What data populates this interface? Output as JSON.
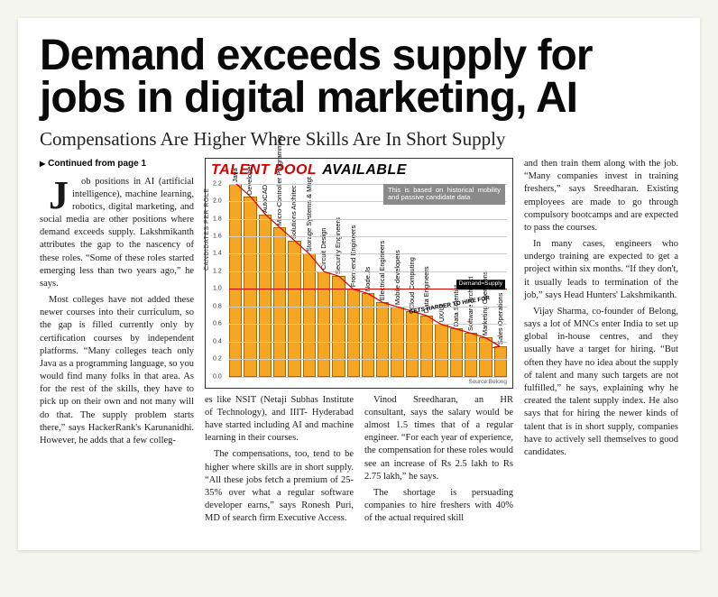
{
  "headline": "Demand exceeds supply for jobs in digital marketing, AI",
  "subhead": "Compensations Are Higher Where Skills Are In Short Supply",
  "continued": "Continued from page 1",
  "column1": {
    "dropcap": "J",
    "p1_rest": "ob positions in AI (artificial intelligence), machine learning, robotics, digital marketing, and social media are other positions where demand exceeds supply. Lakshmikanth attributes the gap to the nascency of these roles. “Some of these roles started emerging less than two years ago,” he says.",
    "p2": "Most colleges have not added these newer courses into their curriculum, so the gap is filled currently only by certification courses by independent platforms. “Many colleges teach only Java as a programming language, so you would find many folks in that area. As for the rest of the skills, they have to pick up on their own and not many will do that. The supply problem starts there,” says HackerRank's Karunanidhi. However, he adds that a few colleg-"
  },
  "mid": {
    "p1": "es like NSIT (Netaji Subhas Institute of Technology), and IIIT- Hyderabad have started including AI and machine learning in their courses.",
    "p2": "The compensations, too, tend to be higher where skills are in short supply. “All these jobs fetch a premium of 25-35% over what a regular software developer earns,” says Ronesh Puri, MD of search firm Executive Access.",
    "p3": "Vinod Sreedharan, an HR consultant, says the salary would be almost 1.5 times that of a regular engineer. “For each year of experience, the compensation for these roles would see an increase of Rs 2.5 lakh to Rs 2.75 lakh,” he says.",
    "p4": "The shortage is persuading companies to hire freshers with 40% of the actual required skill"
  },
  "column4": {
    "p1": "and then train them along with the job. “Many companies invest in training freshers,” says Sreedharan. Existing employees are made to go through compulsory bootcamps and are expected to pass the courses.",
    "p2": "In many cases, engineers who undergo training are expected to get a project within six months. “If they don't, it usually leads to termination of the job,” says Head Hunters' Lakshmikanth.",
    "p3": "Vijay Sharma, co-founder of Belong, says a lot of MNCs enter India to set up global in-house centres, and they usually have a target for hiring. “But often they have no idea about the supply of talent and many such targets are not fulfilled,” he says, explaining why he created the talent supply index. He also says that for hiring the newer kinds of talent that is in short supply, companies have to actively sell themselves to good candidates."
  },
  "chart": {
    "title_a": "TALENT POOL",
    "title_b": "AVAILABLE",
    "title_a_color": "#d40000",
    "title_b_color": "#000000",
    "note": "This is based on historical mobility and passive candidate data",
    "y_axis_label": "CANDIDATES PER ROLE",
    "ylim": [
      0,
      2.2
    ],
    "ytick_step": 0.2,
    "bar_color": "#f5a623",
    "bar_border": "#a86a00",
    "grid_color": "#cccccc",
    "demand_value": 1.0,
    "demand_label": "Demand=Supply",
    "demand_color": "#d40000",
    "curve_color": "#d40000",
    "harder_text": "GETS HARDER TO HIRE FOR",
    "source": "Source:Belong",
    "bars": [
      {
        "label": "Java",
        "value": 2.2
      },
      {
        "label": "Developer",
        "value": 2.05
      },
      {
        "label": "AutoCAD",
        "value": 1.85
      },
      {
        "label": "Micro-Controller Programming",
        "value": 1.7
      },
      {
        "label": "Solutions Architect",
        "value": 1.55
      },
      {
        "label": "Storage Systems & Mngt",
        "value": 1.4
      },
      {
        "label": "Circuit Design",
        "value": 1.2
      },
      {
        "label": "Security Engineers",
        "value": 1.15
      },
      {
        "label": "Front-end Engineers",
        "value": 1.0
      },
      {
        "label": "Node.Js",
        "value": 0.95
      },
      {
        "label": "Electrical Engineers",
        "value": 0.85
      },
      {
        "label": "Mobile developers",
        "value": 0.8
      },
      {
        "label": "Cloud Computing",
        "value": 0.75
      },
      {
        "label": "Data Engineers",
        "value": 0.7
      },
      {
        "label": "UX/UI",
        "value": 0.6
      },
      {
        "label": "Data Scientist",
        "value": 0.55
      },
      {
        "label": "Software Architect",
        "value": 0.5
      },
      {
        "label": "Marketing Operations",
        "value": 0.45
      },
      {
        "label": "Sales Operations",
        "value": 0.35
      }
    ]
  }
}
